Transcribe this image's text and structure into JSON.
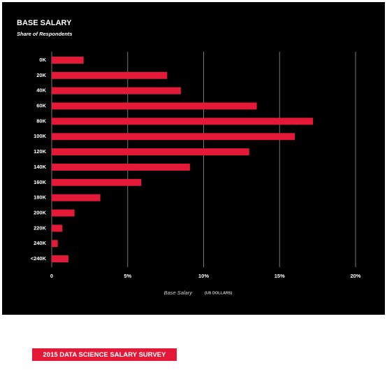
{
  "chart_data": {
    "type": "barh",
    "title": "BASE SALARY",
    "subtitle": "Share of Respondents",
    "categories": [
      "0K",
      "20K",
      "40K",
      "60K",
      "80K",
      "100K",
      "120K",
      "140K",
      "160K",
      "180K",
      "200K",
      "220K",
      "240K",
      "<240K"
    ],
    "values": [
      2.1,
      7.6,
      8.5,
      13.5,
      17.2,
      16.0,
      13.0,
      9.1,
      5.9,
      3.2,
      1.5,
      0.7,
      0.4,
      1.1
    ],
    "color": "#e31937",
    "xlim": [
      0,
      20
    ],
    "xticks": [
      0,
      {
        "value": 5,
        "label": "5%"
      },
      {
        "value": 10,
        "label": "10%"
      },
      {
        "value": 15,
        "label": "15%"
      },
      {
        "value": 20,
        "label": "20%"
      }
    ],
    "grid": true,
    "xlabel": "Base Salary",
    "xlabel_note": "(US DOLLARS)"
  },
  "footer_badge": "2015 DATA SCIENCE SALARY SURVEY"
}
